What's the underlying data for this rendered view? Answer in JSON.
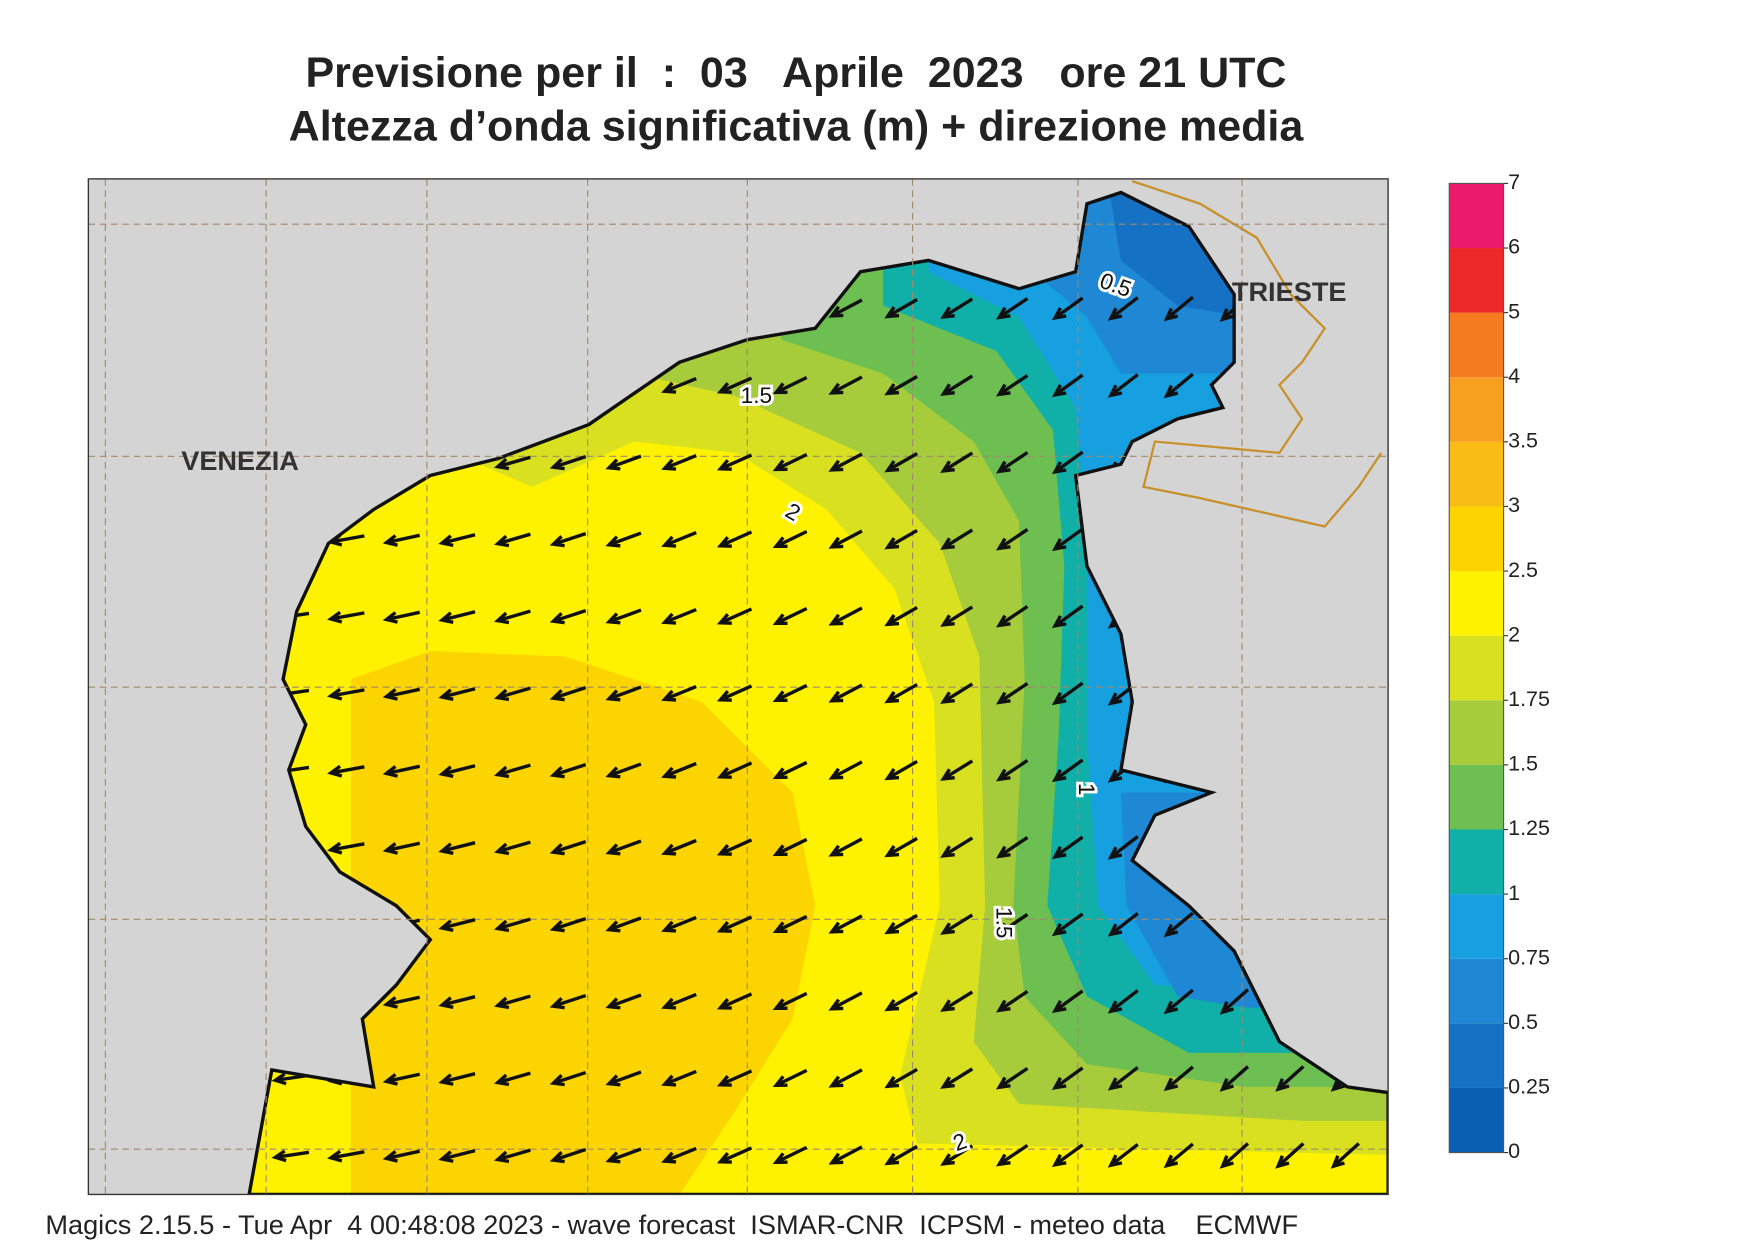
{
  "title": [
    "Previsione per il  :  03   Aprile  2023   ore 21 UTC",
    "Altezza d’onda significativa (m) + direzione media"
  ],
  "map": {
    "cities": [
      "VENEZIA",
      "TRIESTE"
    ],
    "contour_labels": [
      "0.5",
      "1.5",
      "2",
      "1",
      "1.5",
      "2"
    ]
  },
  "colorbar": {
    "ticks": [
      0,
      0.25,
      0.5,
      0.75,
      1,
      1.25,
      1.5,
      1.75,
      2,
      2.5,
      3,
      3.5,
      4,
      5,
      6,
      7
    ],
    "colors": [
      "#0a5fb0",
      "#1471c4",
      "#1e88d4",
      "#16a0e0",
      "#10b0a8",
      "#6cbf50",
      "#a6cc3c",
      "#d8e020",
      "#fff200",
      "#fcd400",
      "#f9bc16",
      "#f7a020",
      "#f47b20",
      "#ec2828",
      "#ea1a6c"
    ]
  },
  "footer": "Magics 2.15.5 - Tue Apr  4 00:48:08 2023 - wave forecast  ISMAR-CNR  ICPSM - meteo data    ECMWF"
}
